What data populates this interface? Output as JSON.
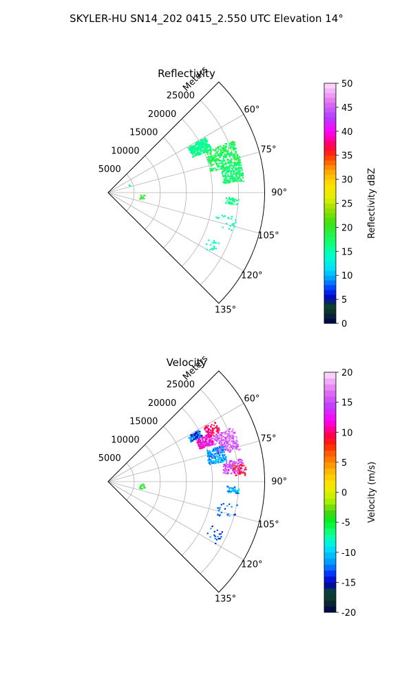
{
  "figure": {
    "title": "SKYLER-HU  SN14_202  0415_2.550 UTC Elevation 14°"
  },
  "chart_data": [
    {
      "type": "polar-scatter",
      "title": "Reflectivity",
      "radial_label": "Meters",
      "radial_ticks": [
        "5000",
        "10000",
        "15000",
        "20000",
        "25000"
      ],
      "radial_tick_values": [
        5000,
        10000,
        15000,
        20000,
        25000
      ],
      "rlim": [
        0,
        30000
      ],
      "angular_ticks": [
        "60°",
        "75°",
        "90°",
        "105°",
        "120°",
        "135°"
      ],
      "angular_tick_values": [
        60,
        75,
        90,
        105,
        120,
        135
      ],
      "theta_range": [
        45,
        135
      ],
      "grid": true,
      "colorbar": {
        "label": "Reflectivity dBZ",
        "ticks": [
          "0",
          "5",
          "10",
          "15",
          "20",
          "25",
          "30",
          "35",
          "40",
          "45",
          "50"
        ],
        "range": [
          0,
          50
        ]
      },
      "clusters": [
        {
          "theta_min": 60,
          "theta_max": 67,
          "r_min": 17500,
          "r_max": 21500,
          "value": 16,
          "density": 260
        },
        {
          "theta_min": 67,
          "theta_max": 78,
          "r_min": 20000,
          "r_max": 26000,
          "value": 18,
          "density": 320
        },
        {
          "theta_min": 77,
          "theta_max": 85,
          "r_min": 22000,
          "r_max": 26000,
          "value": 17,
          "density": 200
        },
        {
          "theta_min": 92,
          "theta_max": 95,
          "r_min": 22500,
          "r_max": 25000,
          "value": 16,
          "density": 40
        },
        {
          "theta_min": 100,
          "theta_max": 107,
          "r_min": 21000,
          "r_max": 25000,
          "value": 15,
          "density": 22
        },
        {
          "theta_min": 113,
          "theta_max": 120,
          "r_min": 21000,
          "r_max": 24000,
          "value": 14,
          "density": 18
        },
        {
          "theta_min": 93,
          "theta_max": 101,
          "r_min": 6000,
          "r_max": 7000,
          "value": 20,
          "density": 14
        },
        {
          "theta_min": 68,
          "theta_max": 72,
          "r_min": 4000,
          "r_max": 5000,
          "value": 16,
          "density": 2
        }
      ]
    },
    {
      "type": "polar-scatter",
      "title": "Velocity",
      "radial_label": "Meters",
      "radial_ticks": [
        "5000",
        "10000",
        "15000",
        "20000",
        "25000"
      ],
      "radial_tick_values": [
        5000,
        10000,
        15000,
        20000,
        25000
      ],
      "rlim": [
        0,
        30000
      ],
      "angular_ticks": [
        "60°",
        "75°",
        "90°",
        "105°",
        "120°",
        "135°"
      ],
      "angular_tick_values": [
        60,
        75,
        90,
        105,
        120,
        135
      ],
      "theta_range": [
        45,
        135
      ],
      "grid": true,
      "colorbar": {
        "label": "Velocity (m/s)",
        "ticks": [
          "-20",
          "-15",
          "-10",
          "-5",
          "0",
          "5",
          "10",
          "15",
          "20"
        ],
        "range": [
          -20,
          20
        ]
      },
      "clusters": [
        {
          "theta_min": 60,
          "theta_max": 64,
          "r_min": 17500,
          "r_max": 20000,
          "value": -13,
          "density": 90
        },
        {
          "theta_min": 64,
          "theta_max": 70,
          "r_min": 18500,
          "r_max": 21500,
          "value": 12,
          "density": 140
        },
        {
          "theta_min": 66,
          "theta_max": 76,
          "r_min": 21500,
          "r_max": 26000,
          "value": 16,
          "density": 240
        },
        {
          "theta_min": 60,
          "theta_max": 66,
          "r_min": 21000,
          "r_max": 23500,
          "value": 10,
          "density": 70
        },
        {
          "theta_min": 72,
          "theta_max": 80,
          "r_min": 19500,
          "r_max": 23000,
          "value": -11,
          "density": 160
        },
        {
          "theta_min": 80,
          "theta_max": 86,
          "r_min": 22000,
          "r_max": 26000,
          "value": 15,
          "density": 130
        },
        {
          "theta_min": 82,
          "theta_max": 87,
          "r_min": 24000,
          "r_max": 26500,
          "value": 9,
          "density": 40
        },
        {
          "theta_min": 92,
          "theta_max": 95,
          "r_min": 22500,
          "r_max": 25000,
          "value": -11,
          "density": 40
        },
        {
          "theta_min": 100,
          "theta_max": 107,
          "r_min": 21000,
          "r_max": 25000,
          "value": -12,
          "density": 22
        },
        {
          "theta_min": 113,
          "theta_max": 120,
          "r_min": 21000,
          "r_max": 24000,
          "value": -13,
          "density": 18
        },
        {
          "theta_min": 93,
          "theta_max": 101,
          "r_min": 6000,
          "r_max": 7000,
          "value": -4,
          "density": 14
        }
      ]
    }
  ]
}
